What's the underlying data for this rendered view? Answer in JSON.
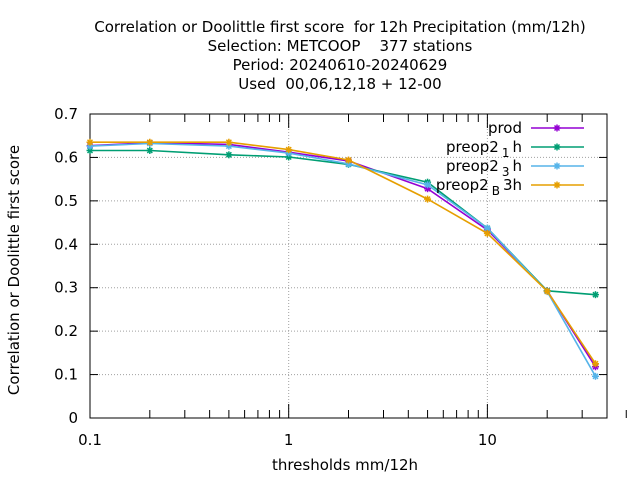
{
  "chart_data": {
    "type": "line",
    "title_lines": [
      "Correlation or Doolittle first score  for 12h Precipitation (mm/12h)",
      "Selection: METCOOP    377 stations",
      "Period: 20240610-20240629",
      "Used  00,06,12,18 + 12-00"
    ],
    "xlabel": "thresholds mm/12h",
    "ylabel": "Correlation or Doolittle first score",
    "xscale": "log",
    "xlim": [
      0.1,
      40
    ],
    "ylim": [
      0,
      0.7
    ],
    "xticks": [
      {
        "value": 0.1,
        "label": "0.1"
      },
      {
        "value": 1,
        "label": "1"
      },
      {
        "value": 10,
        "label": "10"
      }
    ],
    "yticks": [
      {
        "value": 0,
        "label": "0"
      },
      {
        "value": 0.1,
        "label": "0.1"
      },
      {
        "value": 0.2,
        "label": "0.2"
      },
      {
        "value": 0.3,
        "label": "0.3"
      },
      {
        "value": 0.4,
        "label": "0.4"
      },
      {
        "value": 0.5,
        "label": "0.5"
      },
      {
        "value": 0.6,
        "label": "0.6"
      },
      {
        "value": 0.7,
        "label": "0.7"
      }
    ],
    "grid": true,
    "legend_position": "top-right",
    "x": [
      0.1,
      0.2,
      0.5,
      1,
      2,
      5,
      10,
      20,
      35
    ],
    "series": [
      {
        "name": "prod",
        "legend": {
          "base": "prod",
          "sub": "",
          "rest": ""
        },
        "color": "#9400d3",
        "values": [
          0.627,
          0.634,
          0.63,
          0.612,
          0.592,
          0.528,
          0.433,
          0.293,
          0.118
        ]
      },
      {
        "name": "preop2_1h",
        "legend": {
          "base": "preop2",
          "sub": "1",
          "rest": "h"
        },
        "color": "#009e73",
        "values": [
          0.616,
          0.616,
          0.606,
          0.601,
          0.584,
          0.543,
          0.437,
          0.293,
          0.284
        ]
      },
      {
        "name": "preop2_3h",
        "legend": {
          "base": "preop2",
          "sub": "3",
          "rest": "h"
        },
        "color": "#56b4e9",
        "values": [
          0.626,
          0.632,
          0.626,
          0.61,
          0.585,
          0.537,
          0.437,
          0.291,
          0.096
        ]
      },
      {
        "name": "preop2_B3h",
        "legend": {
          "base": "preop2",
          "sub": "B",
          "rest": "3h"
        },
        "color": "#e69f00",
        "values": [
          0.635,
          0.635,
          0.635,
          0.618,
          0.594,
          0.504,
          0.425,
          0.292,
          0.125
        ]
      }
    ]
  }
}
